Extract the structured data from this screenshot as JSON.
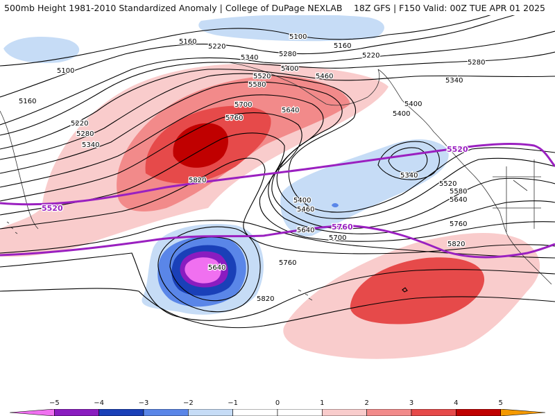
{
  "header": {
    "title_left": "500mb Height 1981-2010 Standardized Anomaly | College of DuPage NEXLAB",
    "title_right": "18Z GFS | F150 Valid: 00Z TUE APR 01 2025"
  },
  "colors": {
    "anom_neg5": "#f070f0",
    "anom_neg4": "#8a1cc0",
    "anom_neg3": "#1a40b8",
    "anom_neg2": "#5a86e8",
    "anom_neg1": "#c6dcf6",
    "anom_pos1": "#f9cccc",
    "anom_pos2": "#f28a8a",
    "anom_pos3": "#e64a4a",
    "anom_pos4": "#c00000",
    "anom_pos5": "#f59a00",
    "contour": "#000000",
    "highlight_contour": "#9a20c0",
    "coast": "#333333"
  },
  "contour_labels": [
    "5100",
    "5160",
    "5220",
    "5280",
    "5340",
    "5400",
    "5460",
    "5520",
    "5580",
    "5640",
    "5700",
    "5760",
    "5820"
  ],
  "highlight_labels": [
    "5520",
    "5760"
  ],
  "colorbar": {
    "ticks": [
      "−5",
      "−4",
      "−3",
      "−2",
      "−1",
      "0",
      "1",
      "2",
      "3",
      "4",
      "5"
    ],
    "colors": [
      "#f070f0",
      "#8a1cc0",
      "#1a40b8",
      "#5a86e8",
      "#c6dcf6",
      "#ffffff",
      "#ffffff",
      "#f9cccc",
      "#f28a8a",
      "#e64a4a",
      "#c00000",
      "#f59a00"
    ]
  }
}
